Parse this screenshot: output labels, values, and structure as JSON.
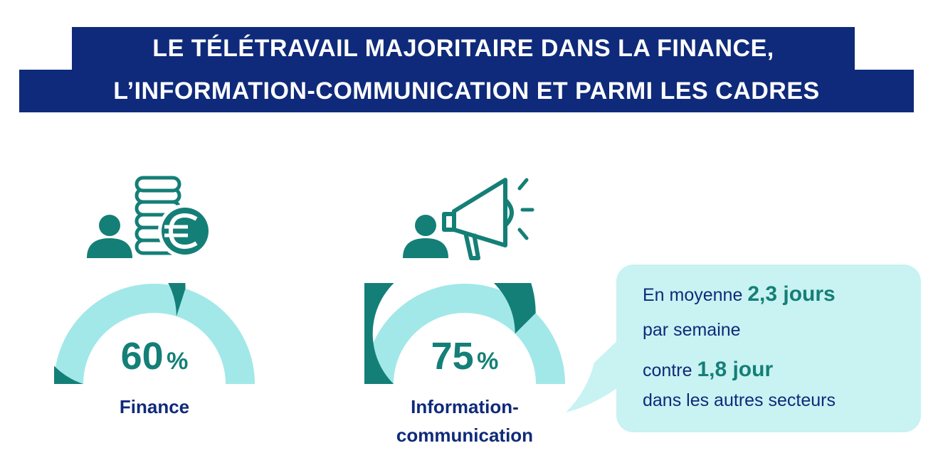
{
  "title": {
    "line1": "LE TÉLÉTRAVAIL MAJORITAIRE DANS LA FINANCE,",
    "line2": "L’INFORMATION-COMMUNICATION ET PARMI LES CADRES"
  },
  "sectors": [
    {
      "label": "Finance",
      "percent_value": "60",
      "percent_symbol": "%",
      "gauge_fraction": 0.6,
      "icon": "person-coins-euro-icon"
    },
    {
      "label_line1": "Information-",
      "label_line2": "communication",
      "percent_value": "75",
      "percent_symbol": "%",
      "gauge_fraction": 0.75,
      "icon": "person-megaphone-icon"
    }
  ],
  "bubble": {
    "line1_prefix": "En moyenne ",
    "line1_highlight": "2,3 jours",
    "line2": "par semaine",
    "line3_prefix": "contre ",
    "line3_highlight": "1,8 jour",
    "line4": "dans les autres secteurs"
  },
  "colors": {
    "title_bg": "#0f2a7a",
    "dark_teal": "#147f77",
    "light_teal": "#a2e8e8",
    "bubble_bg": "#c9f2f2",
    "navy_text": "#0f2a7a"
  }
}
